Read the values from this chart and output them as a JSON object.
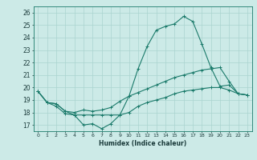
{
  "title": "",
  "xlabel": "Humidex (Indice chaleur)",
  "ylabel": "",
  "bg_color": "#cceae7",
  "grid_color": "#aad4d0",
  "line_color": "#1a7a6a",
  "xlim": [
    -0.5,
    23.5
  ],
  "ylim": [
    16.5,
    26.5
  ],
  "xticks": [
    0,
    1,
    2,
    3,
    4,
    5,
    6,
    7,
    8,
    9,
    10,
    11,
    12,
    13,
    14,
    15,
    16,
    17,
    18,
    19,
    20,
    21,
    22,
    23
  ],
  "yticks": [
    17,
    18,
    19,
    20,
    21,
    22,
    23,
    24,
    25,
    26
  ],
  "series": [
    [
      19.7,
      18.8,
      18.5,
      17.9,
      17.8,
      17.0,
      17.1,
      16.7,
      17.1,
      17.8,
      19.3,
      21.5,
      23.3,
      24.6,
      24.9,
      25.1,
      25.7,
      25.3,
      23.5,
      21.6,
      20.1,
      20.2,
      19.5,
      19.4
    ],
    [
      19.7,
      18.8,
      18.7,
      18.1,
      18.0,
      18.2,
      18.1,
      18.2,
      18.4,
      18.9,
      19.3,
      19.6,
      19.9,
      20.2,
      20.5,
      20.8,
      21.0,
      21.2,
      21.4,
      21.5,
      21.6,
      20.5,
      19.5,
      19.4
    ],
    [
      19.7,
      18.8,
      18.7,
      18.1,
      17.8,
      17.8,
      17.8,
      17.8,
      17.8,
      17.8,
      18.0,
      18.5,
      18.8,
      19.0,
      19.2,
      19.5,
      19.7,
      19.8,
      19.9,
      20.0,
      20.0,
      19.8,
      19.5,
      19.4
    ]
  ]
}
